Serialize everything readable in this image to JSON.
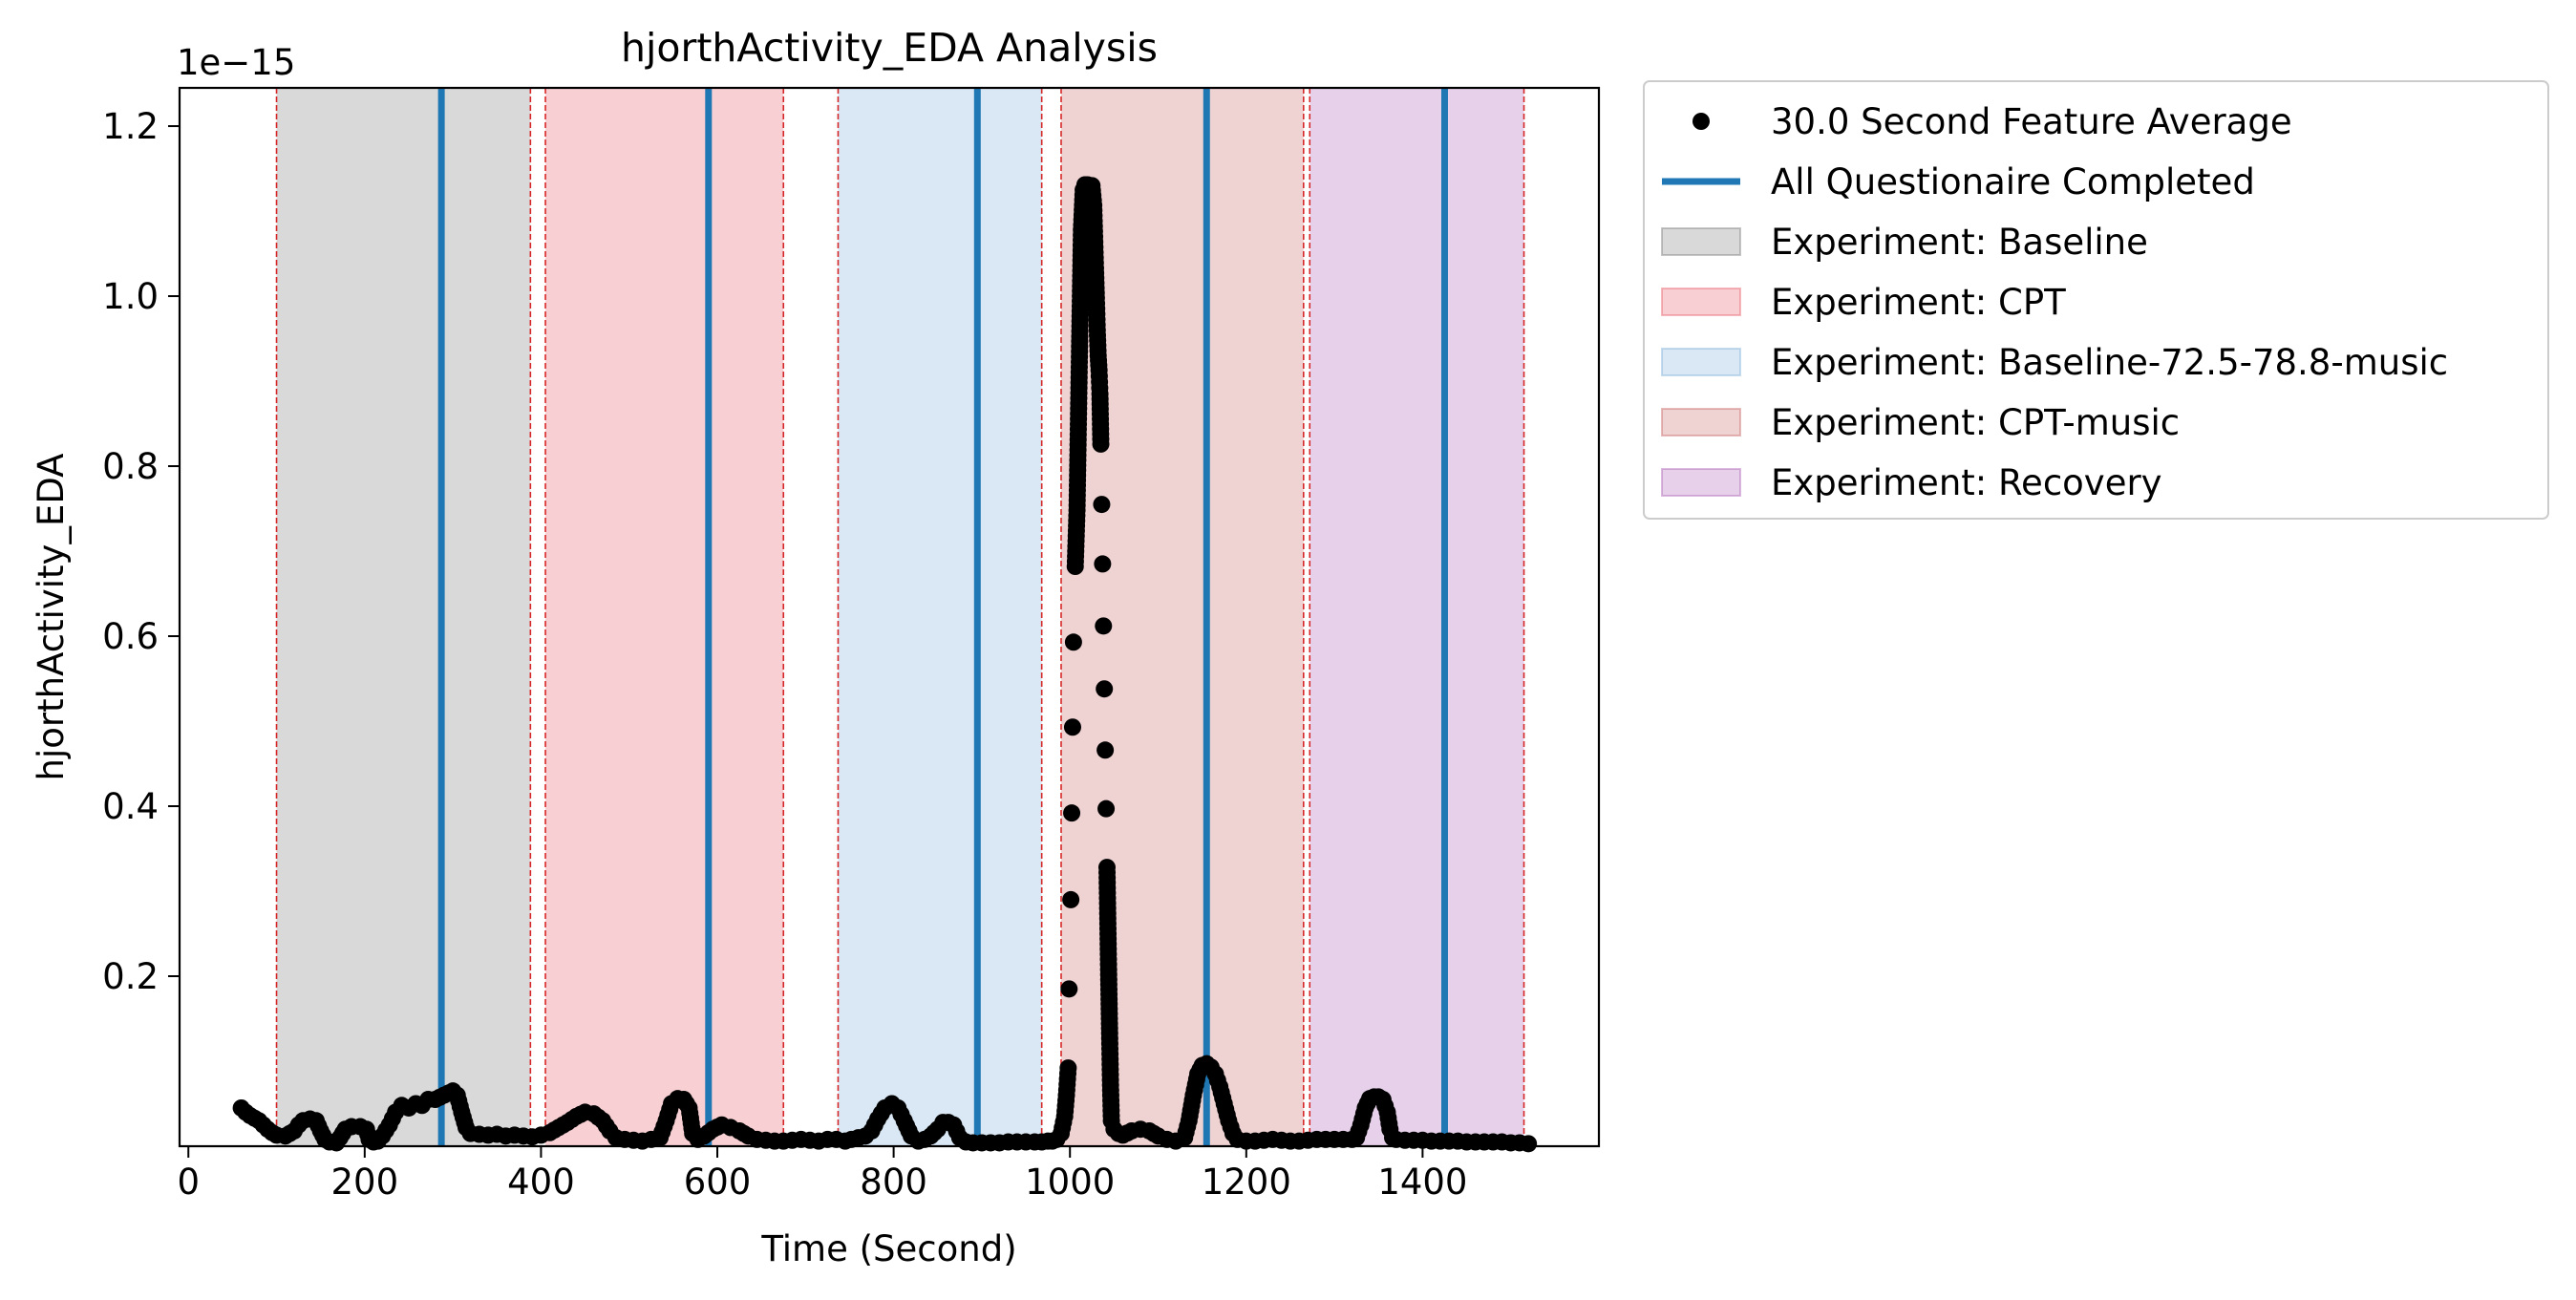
{
  "chart_data": {
    "type": "scatter",
    "title": "hjorthActivity_EDA Analysis",
    "xlabel": "Time (Second)",
    "ylabel": "hjorthActivity_EDA",
    "y_offset_label": "1e−15",
    "xlim": [
      -10,
      1600
    ],
    "ylim": [
      0.0,
      1.245
    ],
    "x_ticks": [
      0,
      200,
      400,
      600,
      800,
      1000,
      1200,
      1400
    ],
    "x_tick_labels": [
      "0",
      "200",
      "400",
      "600",
      "800",
      "1000",
      "1200",
      "1400"
    ],
    "y_ticks": [
      0.2,
      0.4,
      0.6,
      0.8,
      1.0,
      1.2
    ],
    "y_tick_labels": [
      "0.2",
      "0.4",
      "0.6",
      "0.8",
      "1.0",
      "1.2"
    ],
    "grid": false,
    "legend_position": "outside-right-top",
    "legend": [
      {
        "label": "30.0 Second Feature Average",
        "kind": "marker",
        "color": "#000000"
      },
      {
        "label": "All Questionaire Completed",
        "kind": "line",
        "color": "#1f77b4"
      },
      {
        "label": "Experiment: Baseline",
        "kind": "patch",
        "color": "#808080"
      },
      {
        "label": "Experiment: CPT",
        "kind": "patch",
        "color": "#e8636e"
      },
      {
        "label": "Experiment: Baseline-72.5-78.8-music",
        "kind": "patch",
        "color": "#82b3d9"
      },
      {
        "label": "Experiment: CPT-music",
        "kind": "patch",
        "color": "#c96b6b"
      },
      {
        "label": "Experiment: Recovery",
        "kind": "patch",
        "color": "#b066b8"
      }
    ],
    "regions": [
      {
        "name": "Experiment: Baseline",
        "start": 100,
        "end": 388,
        "color": "#808080"
      },
      {
        "name": "Experiment: CPT",
        "start": 405,
        "end": 675,
        "color": "#e8636e"
      },
      {
        "name": "Experiment: Baseline-72.5-78.8-music",
        "start": 737,
        "end": 968,
        "color": "#82b3d9"
      },
      {
        "name": "Experiment: CPT-music",
        "start": 990,
        "end": 1265,
        "color": "#c96b6b"
      },
      {
        "name": "Experiment: Recovery",
        "start": 1272,
        "end": 1515,
        "color": "#b066b8"
      }
    ],
    "region_boundaries": [
      100,
      388,
      405,
      675,
      737,
      968,
      990,
      1265,
      1272,
      1515
    ],
    "questionnaire_times": [
      287,
      590,
      895,
      1155,
      1425
    ],
    "series": [
      {
        "name": "30.0 Second Feature Average",
        "points": [
          [
            60,
            0.045
          ],
          [
            65,
            0.04
          ],
          [
            70,
            0.036
          ],
          [
            75,
            0.033
          ],
          [
            80,
            0.03
          ],
          [
            85,
            0.025
          ],
          [
            90,
            0.02
          ],
          [
            95,
            0.016
          ],
          [
            100,
            0.013
          ],
          [
            110,
            0.012
          ],
          [
            120,
            0.018
          ],
          [
            125,
            0.025
          ],
          [
            130,
            0.03
          ],
          [
            138,
            0.032
          ],
          [
            145,
            0.03
          ],
          [
            150,
            0.018
          ],
          [
            155,
            0.008
          ],
          [
            160,
            0.005
          ],
          [
            168,
            0.004
          ],
          [
            172,
            0.01
          ],
          [
            178,
            0.02
          ],
          [
            185,
            0.023
          ],
          [
            195,
            0.023
          ],
          [
            202,
            0.02
          ],
          [
            205,
            0.008
          ],
          [
            210,
            0.005
          ],
          [
            215,
            0.006
          ],
          [
            220,
            0.012
          ],
          [
            228,
            0.025
          ],
          [
            235,
            0.04
          ],
          [
            242,
            0.048
          ],
          [
            250,
            0.045
          ],
          [
            258,
            0.05
          ],
          [
            265,
            0.048
          ],
          [
            272,
            0.055
          ],
          [
            280,
            0.055
          ],
          [
            290,
            0.06
          ],
          [
            300,
            0.065
          ],
          [
            305,
            0.06
          ],
          [
            310,
            0.04
          ],
          [
            315,
            0.022
          ],
          [
            320,
            0.015
          ],
          [
            330,
            0.014
          ],
          [
            340,
            0.013
          ],
          [
            350,
            0.014
          ],
          [
            360,
            0.012
          ],
          [
            370,
            0.013
          ],
          [
            380,
            0.012
          ],
          [
            390,
            0.011
          ],
          [
            400,
            0.013
          ],
          [
            410,
            0.016
          ],
          [
            420,
            0.022
          ],
          [
            430,
            0.028
          ],
          [
            440,
            0.035
          ],
          [
            450,
            0.04
          ],
          [
            460,
            0.038
          ],
          [
            470,
            0.03
          ],
          [
            478,
            0.018
          ],
          [
            485,
            0.01
          ],
          [
            495,
            0.008
          ],
          [
            505,
            0.007
          ],
          [
            515,
            0.006
          ],
          [
            525,
            0.008
          ],
          [
            535,
            0.01
          ],
          [
            542,
            0.03
          ],
          [
            548,
            0.05
          ],
          [
            555,
            0.056
          ],
          [
            562,
            0.055
          ],
          [
            568,
            0.045
          ],
          [
            572,
            0.015
          ],
          [
            578,
            0.008
          ],
          [
            585,
            0.012
          ],
          [
            595,
            0.02
          ],
          [
            605,
            0.025
          ],
          [
            615,
            0.022
          ],
          [
            625,
            0.018
          ],
          [
            635,
            0.012
          ],
          [
            645,
            0.008
          ],
          [
            655,
            0.007
          ],
          [
            665,
            0.006
          ],
          [
            675,
            0.006
          ],
          [
            685,
            0.007
          ],
          [
            695,
            0.008
          ],
          [
            705,
            0.007
          ],
          [
            715,
            0.006
          ],
          [
            725,
            0.008
          ],
          [
            735,
            0.008
          ],
          [
            745,
            0.006
          ],
          [
            752,
            0.008
          ],
          [
            760,
            0.01
          ],
          [
            768,
            0.012
          ],
          [
            775,
            0.018
          ],
          [
            782,
            0.032
          ],
          [
            790,
            0.045
          ],
          [
            798,
            0.05
          ],
          [
            805,
            0.045
          ],
          [
            812,
            0.03
          ],
          [
            820,
            0.012
          ],
          [
            828,
            0.006
          ],
          [
            835,
            0.008
          ],
          [
            842,
            0.012
          ],
          [
            850,
            0.02
          ],
          [
            856,
            0.028
          ],
          [
            862,
            0.028
          ],
          [
            868,
            0.025
          ],
          [
            875,
            0.01
          ],
          [
            882,
            0.005
          ],
          [
            890,
            0.004
          ],
          [
            900,
            0.004
          ],
          [
            910,
            0.004
          ],
          [
            920,
            0.004
          ],
          [
            930,
            0.005
          ],
          [
            940,
            0.005
          ],
          [
            950,
            0.005
          ],
          [
            960,
            0.005
          ],
          [
            968,
            0.005
          ],
          [
            975,
            0.006
          ],
          [
            980,
            0.006
          ],
          [
            985,
            0.008
          ],
          [
            990,
            0.015
          ],
          [
            994,
            0.035
          ],
          [
            996,
            0.06
          ],
          [
            998,
            0.092
          ],
          [
            999,
            0.185
          ],
          [
            1001,
            0.29
          ],
          [
            1002,
            0.392
          ],
          [
            1003,
            0.493
          ],
          [
            1004,
            0.593
          ],
          [
            1006,
            0.682
          ],
          [
            1008,
            0.748
          ],
          [
            1009,
            0.813
          ],
          [
            1010,
            0.88
          ],
          [
            1011,
            0.947
          ],
          [
            1012,
            1.012
          ],
          [
            1013,
            1.078
          ],
          [
            1015,
            1.125
          ],
          [
            1017,
            1.131
          ],
          [
            1020,
            1.131
          ],
          [
            1022,
            1.125
          ],
          [
            1025,
            1.13
          ],
          [
            1027,
            1.107
          ],
          [
            1028,
            1.07
          ],
          [
            1029,
            1.033
          ],
          [
            1030,
            0.998
          ],
          [
            1031,
            0.96
          ],
          [
            1032,
            0.93
          ],
          [
            1033,
            0.913
          ],
          [
            1034,
            0.885
          ],
          [
            1035,
            0.826
          ],
          [
            1036,
            0.755
          ],
          [
            1037,
            0.685
          ],
          [
            1038,
            0.612
          ],
          [
            1039,
            0.538
          ],
          [
            1040,
            0.466
          ],
          [
            1041,
            0.397
          ],
          [
            1042,
            0.328
          ],
          [
            1043,
            0.262
          ],
          [
            1044,
            0.196
          ],
          [
            1045,
            0.133
          ],
          [
            1046,
            0.072
          ],
          [
            1047,
            0.03
          ],
          [
            1050,
            0.02
          ],
          [
            1055,
            0.015
          ],
          [
            1060,
            0.013
          ],
          [
            1070,
            0.018
          ],
          [
            1080,
            0.02
          ],
          [
            1090,
            0.018
          ],
          [
            1100,
            0.012
          ],
          [
            1110,
            0.008
          ],
          [
            1120,
            0.006
          ],
          [
            1130,
            0.01
          ],
          [
            1135,
            0.03
          ],
          [
            1140,
            0.06
          ],
          [
            1145,
            0.085
          ],
          [
            1150,
            0.095
          ],
          [
            1155,
            0.097
          ],
          [
            1160,
            0.093
          ],
          [
            1165,
            0.085
          ],
          [
            1170,
            0.07
          ],
          [
            1175,
            0.05
          ],
          [
            1180,
            0.03
          ],
          [
            1185,
            0.015
          ],
          [
            1190,
            0.008
          ],
          [
            1200,
            0.006
          ],
          [
            1210,
            0.006
          ],
          [
            1220,
            0.007
          ],
          [
            1230,
            0.008
          ],
          [
            1240,
            0.007
          ],
          [
            1250,
            0.006
          ],
          [
            1260,
            0.006
          ],
          [
            1270,
            0.007
          ],
          [
            1280,
            0.008
          ],
          [
            1290,
            0.008
          ],
          [
            1300,
            0.008
          ],
          [
            1310,
            0.008
          ],
          [
            1320,
            0.008
          ],
          [
            1325,
            0.01
          ],
          [
            1330,
            0.025
          ],
          [
            1335,
            0.045
          ],
          [
            1340,
            0.056
          ],
          [
            1345,
            0.058
          ],
          [
            1350,
            0.058
          ],
          [
            1355,
            0.055
          ],
          [
            1360,
            0.04
          ],
          [
            1363,
            0.02
          ],
          [
            1366,
            0.01
          ],
          [
            1370,
            0.008
          ],
          [
            1380,
            0.007
          ],
          [
            1390,
            0.007
          ],
          [
            1400,
            0.007
          ],
          [
            1410,
            0.006
          ],
          [
            1420,
            0.006
          ],
          [
            1430,
            0.006
          ],
          [
            1440,
            0.006
          ],
          [
            1450,
            0.005
          ],
          [
            1460,
            0.005
          ],
          [
            1470,
            0.005
          ],
          [
            1480,
            0.005
          ],
          [
            1490,
            0.005
          ],
          [
            1500,
            0.004
          ],
          [
            1510,
            0.004
          ],
          [
            1520,
            0.003
          ]
        ]
      }
    ]
  }
}
